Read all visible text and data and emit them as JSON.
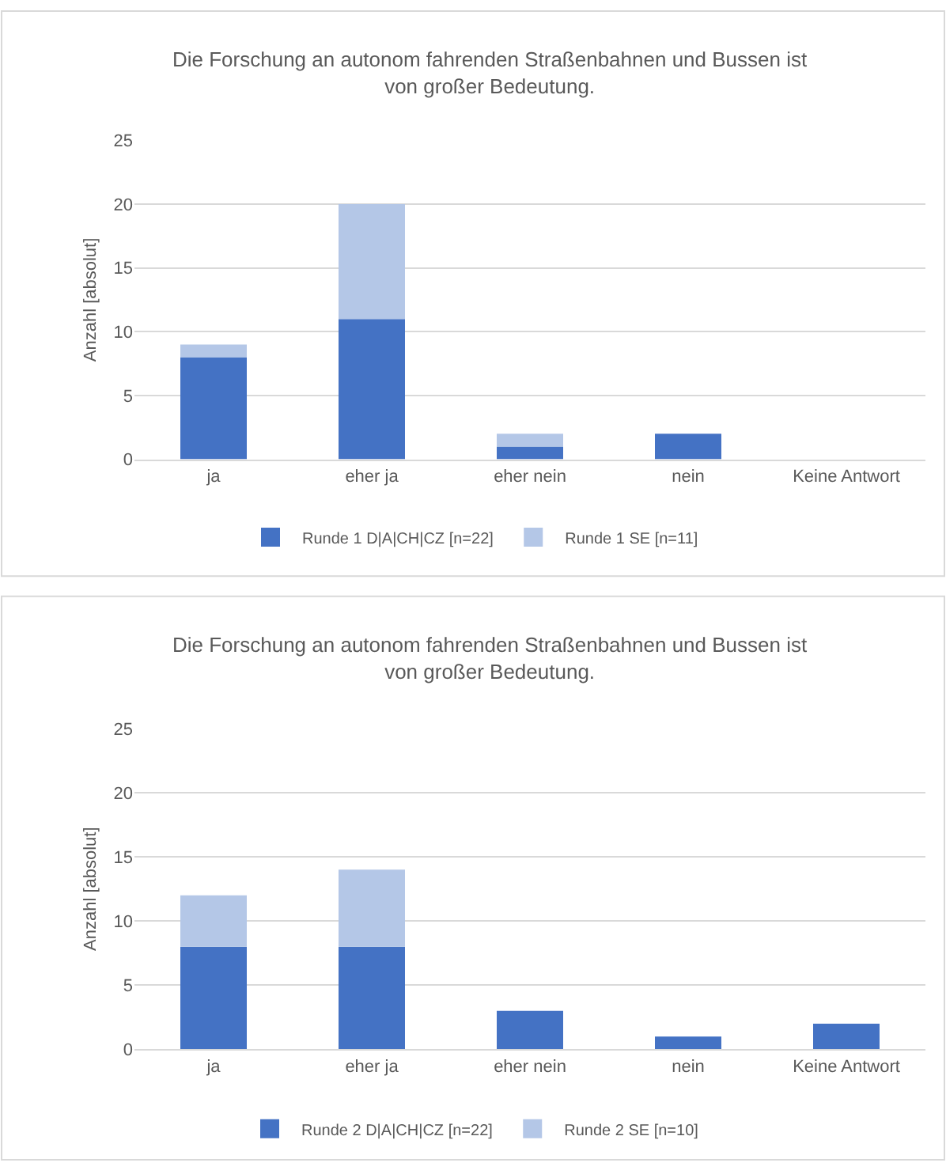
{
  "chart_data": [
    {
      "type": "bar",
      "stacked": true,
      "title": "Die Forschung an autonom fahrenden Straßenbahnen und Bussen ist von großer Bedeutung.",
      "ylabel": "Anzahl [absolut]",
      "categories": [
        "ja",
        "eher ja",
        "eher nein",
        "nein",
        "Keine Antwort"
      ],
      "series": [
        {
          "name": "Runde 1 D|A|CH|CZ [n=22]",
          "color": "#4472c4",
          "values": [
            8,
            11,
            1,
            2,
            0
          ]
        },
        {
          "name": "Runde 1 SE [n=11]",
          "color": "#b4c7e7",
          "values": [
            1,
            9,
            1,
            0,
            0
          ]
        }
      ],
      "ylim": [
        0,
        25
      ],
      "yticks": [
        0,
        5,
        10,
        15,
        20,
        25
      ],
      "grid": "y",
      "legend": "bottom"
    },
    {
      "type": "bar",
      "stacked": true,
      "title": "Die Forschung an autonom fahrenden Straßenbahnen und Bussen ist von großer Bedeutung.",
      "ylabel": "Anzahl [absolut]",
      "categories": [
        "ja",
        "eher ja",
        "eher nein",
        "nein",
        "Keine Antwort"
      ],
      "series": [
        {
          "name": "Runde 2 D|A|CH|CZ [n=22]",
          "color": "#4472c4",
          "values": [
            8,
            8,
            3,
            1,
            2
          ]
        },
        {
          "name": "Runde 2 SE [n=10]",
          "color": "#b4c7e7",
          "values": [
            4,
            6,
            0,
            0,
            0
          ]
        }
      ],
      "ylim": [
        0,
        25
      ],
      "yticks": [
        0,
        5,
        10,
        15,
        20,
        25
      ],
      "grid": "y",
      "legend": "bottom"
    }
  ]
}
